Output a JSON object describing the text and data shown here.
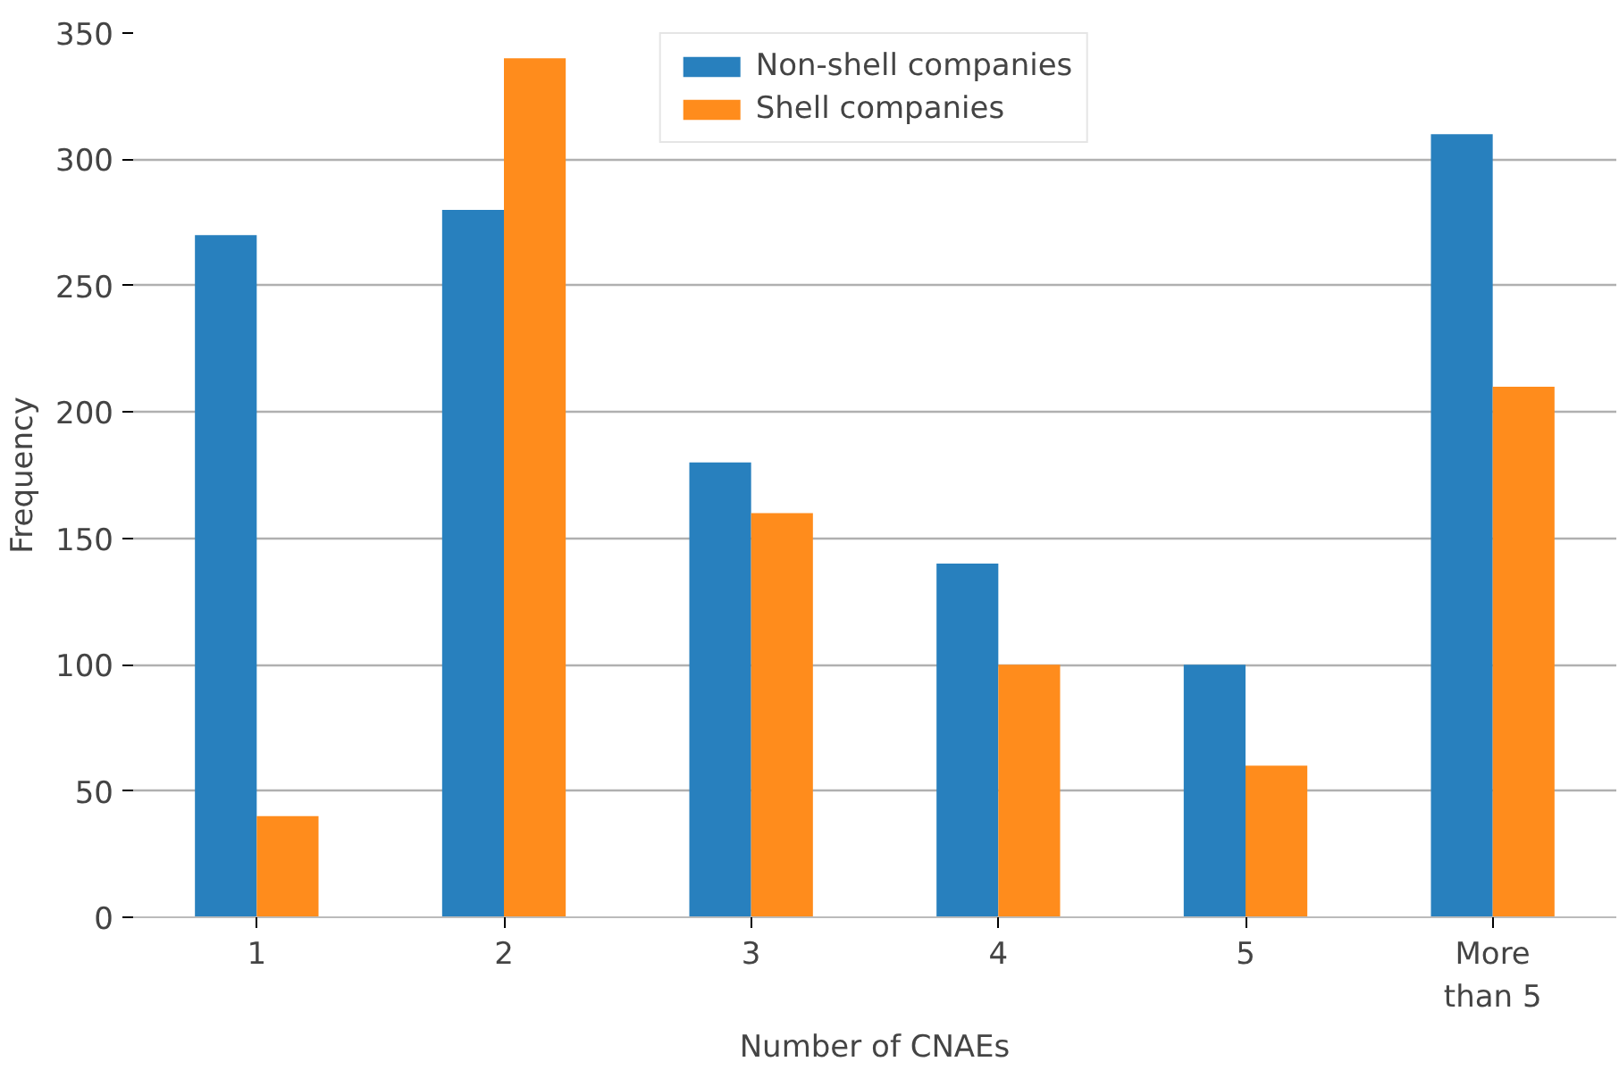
{
  "chart_data": {
    "type": "bar",
    "xlabel": "Number of CNAEs",
    "ylabel": "Frequency",
    "categories": [
      "1",
      "2",
      "3",
      "4",
      "5",
      "More\nthan 5"
    ],
    "series": [
      {
        "name": "Non-shell companies",
        "color": "#2880be",
        "values": [
          270,
          280,
          180,
          140,
          100,
          310
        ]
      },
      {
        "name": "Shell companies",
        "color": "#ff8c1c",
        "values": [
          40,
          340,
          160,
          100,
          60,
          210
        ]
      }
    ],
    "ylim": [
      0,
      350
    ],
    "yticks": [
      0,
      50,
      100,
      150,
      200,
      250,
      300,
      350
    ],
    "grid": "y",
    "legend": "top"
  }
}
